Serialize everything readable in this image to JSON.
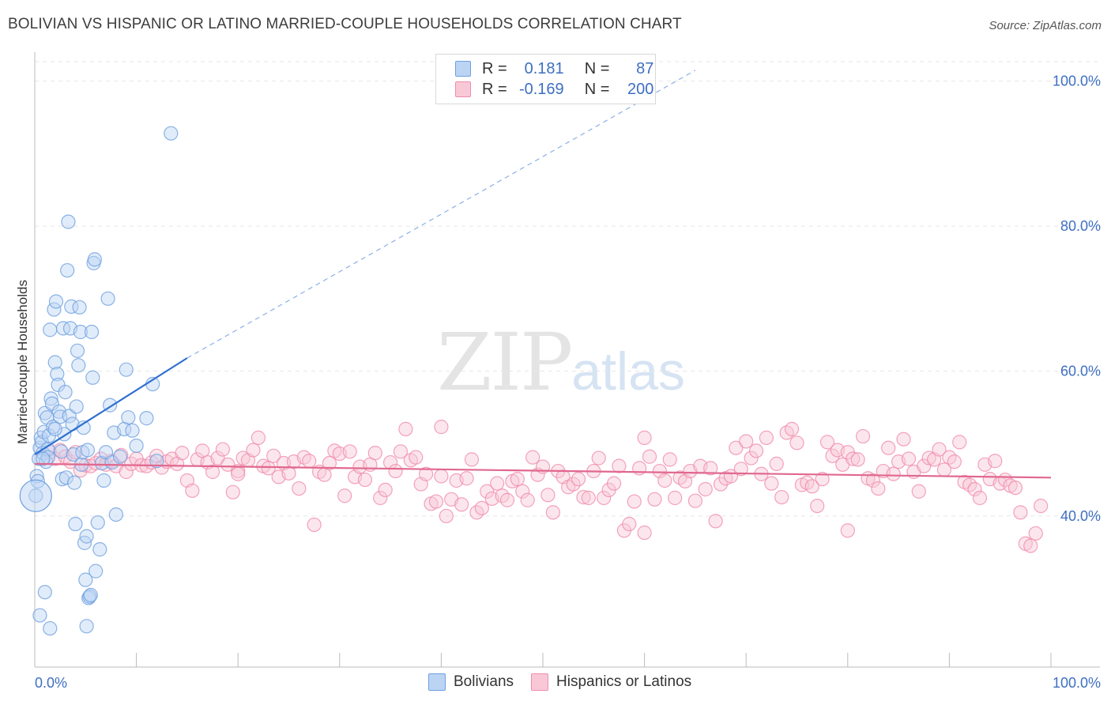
{
  "title": "BOLIVIAN VS HISPANIC OR LATINO MARRIED-COUPLE HOUSEHOLDS CORRELATION CHART",
  "source": "Source: ZipAtlas.com",
  "watermark": {
    "zip": "ZIP",
    "atlas": "atlas"
  },
  "legend": {
    "rows": [
      {
        "r_label": "R =",
        "r_value": "0.181",
        "n_label": "N =",
        "n_value": "87",
        "color": "#6ea0e0"
      },
      {
        "r_label": "R =",
        "r_value": "-0.169",
        "n_label": "N =",
        "n_value": "200",
        "color": "#f08cab"
      }
    ]
  },
  "bottom_legend": [
    {
      "label": "Bolivians",
      "color": "#6ea0e0"
    },
    {
      "label": "Hispanics or Latinos",
      "color": "#f08cab"
    }
  ],
  "chart_data": {
    "type": "scatter",
    "ylabel": "Married-couple Households",
    "xlim": [
      0,
      100
    ],
    "ylim": [
      22,
      104
    ],
    "x_tick_labels": [
      "0.0%",
      "100.0%"
    ],
    "y_ticks": [
      40,
      60,
      80,
      100
    ],
    "y_tick_labels": [
      "40.0%",
      "60.0%",
      "80.0%",
      "100.0%"
    ],
    "grid": true,
    "series": [
      {
        "name": "Bolivians",
        "color": "#6ea0e0",
        "trend": {
          "x0": 0,
          "y0": 48.5,
          "x1": 15,
          "y1": 61.8,
          "dash_to_x": 65,
          "dash_to_y": 101.5,
          "color": "#2f6fd0"
        },
        "points": [
          [
            0.1,
            42.8
          ],
          [
            0.2,
            45.5
          ],
          [
            0.3,
            44.8
          ],
          [
            0.4,
            47.9
          ],
          [
            0.5,
            49.4
          ],
          [
            0.6,
            50.8
          ],
          [
            0.7,
            50.2
          ],
          [
            0.8,
            48.7
          ],
          [
            0.9,
            51.6
          ],
          [
            1.0,
            54.2
          ],
          [
            1.1,
            47.5
          ],
          [
            1.2,
            53.6
          ],
          [
            1.3,
            49.2
          ],
          [
            1.4,
            51.1
          ],
          [
            1.5,
            65.7
          ],
          [
            1.6,
            56.2
          ],
          [
            1.7,
            55.5
          ],
          [
            1.8,
            52.3
          ],
          [
            1.9,
            68.5
          ],
          [
            2.0,
            61.2
          ],
          [
            2.1,
            69.6
          ],
          [
            2.2,
            59.6
          ],
          [
            2.3,
            58.1
          ],
          [
            2.4,
            54.4
          ],
          [
            2.5,
            53.7
          ],
          [
            2.6,
            48.9
          ],
          [
            2.7,
            45.1
          ],
          [
            2.8,
            65.9
          ],
          [
            2.9,
            51.3
          ],
          [
            3.0,
            57.1
          ],
          [
            3.1,
            45.3
          ],
          [
            3.2,
            73.9
          ],
          [
            3.3,
            80.6
          ],
          [
            3.4,
            53.8
          ],
          [
            3.5,
            65.9
          ],
          [
            3.6,
            68.9
          ],
          [
            3.7,
            52.7
          ],
          [
            3.8,
            48.5
          ],
          [
            3.9,
            44.6
          ],
          [
            4.0,
            38.9
          ],
          [
            4.1,
            55.1
          ],
          [
            4.2,
            62.8
          ],
          [
            4.3,
            60.8
          ],
          [
            4.4,
            68.8
          ],
          [
            4.5,
            65.4
          ],
          [
            4.6,
            47.1
          ],
          [
            4.7,
            48.8
          ],
          [
            4.8,
            52.2
          ],
          [
            4.9,
            36.3
          ],
          [
            5.0,
            31.2
          ],
          [
            5.1,
            37.2
          ],
          [
            5.2,
            49.1
          ],
          [
            5.3,
            28.7
          ],
          [
            5.4,
            28.9
          ],
          [
            5.5,
            29.1
          ],
          [
            5.6,
            65.4
          ],
          [
            5.7,
            59.1
          ],
          [
            5.8,
            74.9
          ],
          [
            5.9,
            75.4
          ],
          [
            6.0,
            32.4
          ],
          [
            6.2,
            39.1
          ],
          [
            6.4,
            35.4
          ],
          [
            6.6,
            47.3
          ],
          [
            6.8,
            44.9
          ],
          [
            7.0,
            48.8
          ],
          [
            7.2,
            70.0
          ],
          [
            7.4,
            55.3
          ],
          [
            7.6,
            47.4
          ],
          [
            7.8,
            51.5
          ],
          [
            8.0,
            40.2
          ],
          [
            8.4,
            48.2
          ],
          [
            8.8,
            52.0
          ],
          [
            9.0,
            60.2
          ],
          [
            9.2,
            53.6
          ],
          [
            9.6,
            51.8
          ],
          [
            10.0,
            49.7
          ],
          [
            11.0,
            53.5
          ],
          [
            11.6,
            58.2
          ],
          [
            12.0,
            47.6
          ],
          [
            13.4,
            92.8
          ],
          [
            0.5,
            26.3
          ],
          [
            1.0,
            29.5
          ],
          [
            1.5,
            24.5
          ],
          [
            5.1,
            24.8
          ],
          [
            2.0,
            52.0
          ],
          [
            1.3,
            48.1
          ],
          [
            0.8,
            47.9
          ]
        ]
      },
      {
        "name": "Hispanics or Latinos",
        "color": "#f08cab",
        "trend": {
          "x0": 0,
          "y0": 47.2,
          "x1": 100,
          "y1": 45.3,
          "color": "#e0688f"
        },
        "points": [
          [
            1.5,
            48.8
          ],
          [
            2.0,
            47.9
          ],
          [
            2.5,
            49.1
          ],
          [
            3.0,
            48.2
          ],
          [
            3.5,
            47.5
          ],
          [
            4.0,
            48.8
          ],
          [
            4.5,
            46.3
          ],
          [
            5.0,
            47.0
          ],
          [
            5.5,
            46.9
          ],
          [
            6.0,
            47.3
          ],
          [
            6.5,
            47.9
          ],
          [
            7.0,
            47.1
          ],
          [
            7.5,
            47.6
          ],
          [
            8.0,
            46.9
          ],
          [
            8.5,
            48.4
          ],
          [
            9.0,
            46.1
          ],
          [
            9.5,
            47.2
          ],
          [
            10.0,
            47.9
          ],
          [
            10.5,
            47.0
          ],
          [
            11.0,
            46.9
          ],
          [
            11.5,
            47.4
          ],
          [
            12.0,
            48.3
          ],
          [
            12.5,
            46.7
          ],
          [
            13.0,
            47.5
          ],
          [
            13.5,
            47.9
          ],
          [
            14.0,
            47.2
          ],
          [
            14.5,
            48.7
          ],
          [
            15.0,
            44.9
          ],
          [
            15.5,
            43.5
          ],
          [
            16.0,
            47.8
          ],
          [
            16.5,
            49.0
          ],
          [
            17.0,
            47.4
          ],
          [
            17.5,
            46.1
          ],
          [
            18.0,
            48.0
          ],
          [
            18.5,
            49.2
          ],
          [
            19.0,
            47.1
          ],
          [
            19.5,
            43.3
          ],
          [
            20.0,
            46.2
          ],
          [
            20.5,
            48.0
          ],
          [
            21.0,
            47.7
          ],
          [
            21.5,
            49.1
          ],
          [
            22.0,
            50.8
          ],
          [
            22.5,
            46.9
          ],
          [
            23.0,
            46.6
          ],
          [
            23.5,
            48.3
          ],
          [
            24.0,
            45.4
          ],
          [
            24.5,
            47.3
          ],
          [
            25.0,
            45.9
          ],
          [
            25.5,
            47.5
          ],
          [
            26.0,
            43.8
          ],
          [
            26.5,
            48.1
          ],
          [
            27.0,
            47.6
          ],
          [
            27.5,
            38.8
          ],
          [
            28.0,
            46.1
          ],
          [
            28.5,
            45.7
          ],
          [
            29.0,
            47.3
          ],
          [
            29.5,
            49.0
          ],
          [
            30.0,
            48.6
          ],
          [
            30.5,
            42.8
          ],
          [
            31.0,
            48.9
          ],
          [
            31.5,
            45.4
          ],
          [
            32.0,
            46.8
          ],
          [
            32.5,
            45.0
          ],
          [
            33.0,
            47.1
          ],
          [
            33.5,
            48.7
          ],
          [
            34.0,
            42.5
          ],
          [
            34.5,
            43.6
          ],
          [
            35.0,
            47.4
          ],
          [
            35.5,
            46.2
          ],
          [
            36.0,
            48.9
          ],
          [
            36.5,
            52.0
          ],
          [
            37.0,
            47.7
          ],
          [
            37.5,
            48.1
          ],
          [
            38.0,
            44.4
          ],
          [
            38.5,
            45.8
          ],
          [
            39.0,
            41.7
          ],
          [
            39.5,
            42.0
          ],
          [
            40.0,
            45.5
          ],
          [
            40.5,
            40.0
          ],
          [
            41.0,
            42.3
          ],
          [
            41.5,
            44.9
          ],
          [
            42.0,
            41.6
          ],
          [
            42.5,
            45.2
          ],
          [
            43.0,
            47.8
          ],
          [
            43.5,
            40.5
          ],
          [
            44.0,
            41.1
          ],
          [
            44.5,
            43.4
          ],
          [
            45.0,
            42.4
          ],
          [
            45.5,
            44.5
          ],
          [
            46.0,
            42.8
          ],
          [
            46.5,
            42.2
          ],
          [
            47.0,
            44.8
          ],
          [
            47.5,
            45.1
          ],
          [
            48.0,
            43.4
          ],
          [
            48.5,
            42.2
          ],
          [
            49.0,
            48.1
          ],
          [
            49.5,
            45.7
          ],
          [
            50.0,
            46.8
          ],
          [
            50.5,
            42.9
          ],
          [
            51.0,
            40.5
          ],
          [
            51.5,
            46.2
          ],
          [
            52.0,
            45.4
          ],
          [
            52.5,
            44.0
          ],
          [
            53.0,
            44.4
          ],
          [
            53.5,
            45.1
          ],
          [
            54.0,
            42.6
          ],
          [
            54.5,
            42.5
          ],
          [
            55.0,
            46.2
          ],
          [
            55.5,
            48.0
          ],
          [
            56.0,
            42.5
          ],
          [
            56.5,
            43.6
          ],
          [
            57.0,
            44.5
          ],
          [
            57.5,
            46.9
          ],
          [
            58.0,
            38.0
          ],
          [
            58.5,
            38.9
          ],
          [
            59.0,
            42.0
          ],
          [
            59.5,
            46.6
          ],
          [
            60.0,
            37.7
          ],
          [
            60.5,
            48.2
          ],
          [
            61.0,
            42.3
          ],
          [
            61.5,
            46.2
          ],
          [
            62.0,
            44.9
          ],
          [
            62.5,
            47.8
          ],
          [
            63.0,
            42.5
          ],
          [
            63.5,
            45.3
          ],
          [
            64.0,
            44.8
          ],
          [
            64.5,
            46.2
          ],
          [
            65.0,
            42.1
          ],
          [
            65.5,
            46.9
          ],
          [
            66.0,
            43.7
          ],
          [
            66.5,
            46.6
          ],
          [
            67.0,
            39.3
          ],
          [
            67.5,
            44.4
          ],
          [
            68.0,
            45.2
          ],
          [
            68.5,
            45.5
          ],
          [
            69.0,
            49.4
          ],
          [
            69.5,
            46.5
          ],
          [
            70.0,
            50.3
          ],
          [
            70.5,
            48.0
          ],
          [
            71.0,
            49.0
          ],
          [
            71.5,
            45.8
          ],
          [
            72.0,
            50.8
          ],
          [
            72.5,
            44.5
          ],
          [
            73.0,
            47.2
          ],
          [
            73.5,
            42.6
          ],
          [
            74.0,
            51.5
          ],
          [
            74.5,
            52.0
          ],
          [
            75.0,
            50.1
          ],
          [
            75.5,
            44.3
          ],
          [
            76.0,
            44.6
          ],
          [
            76.5,
            44.1
          ],
          [
            77.0,
            41.4
          ],
          [
            77.5,
            45.1
          ],
          [
            78.0,
            50.2
          ],
          [
            78.5,
            48.3
          ],
          [
            79.0,
            49.1
          ],
          [
            79.5,
            47.1
          ],
          [
            80.0,
            48.8
          ],
          [
            80.5,
            47.9
          ],
          [
            81.0,
            47.8
          ],
          [
            81.5,
            51.0
          ],
          [
            82.0,
            45.2
          ],
          [
            82.5,
            44.9
          ],
          [
            83.0,
            43.8
          ],
          [
            83.5,
            46.2
          ],
          [
            84.0,
            49.4
          ],
          [
            84.5,
            45.8
          ],
          [
            85.0,
            47.5
          ],
          [
            85.5,
            50.6
          ],
          [
            86.0,
            47.9
          ],
          [
            86.5,
            46.1
          ],
          [
            87.0,
            43.4
          ],
          [
            87.5,
            46.9
          ],
          [
            88.0,
            48.0
          ],
          [
            88.5,
            47.8
          ],
          [
            89.0,
            49.2
          ],
          [
            89.5,
            46.4
          ],
          [
            90.0,
            48.1
          ],
          [
            90.5,
            47.5
          ],
          [
            91.0,
            50.2
          ],
          [
            91.5,
            44.7
          ],
          [
            92.0,
            44.3
          ],
          [
            92.5,
            43.7
          ],
          [
            93.0,
            42.5
          ],
          [
            93.5,
            47.1
          ],
          [
            94.0,
            45.1
          ],
          [
            94.5,
            47.6
          ],
          [
            95.0,
            44.5
          ],
          [
            95.5,
            45.0
          ],
          [
            96.0,
            44.2
          ],
          [
            96.5,
            43.9
          ],
          [
            97.0,
            40.5
          ],
          [
            97.5,
            36.2
          ],
          [
            98.0,
            35.9
          ],
          [
            98.5,
            37.6
          ],
          [
            99.0,
            41.4
          ],
          [
            20.0,
            45.8
          ],
          [
            40.0,
            52.3
          ],
          [
            60.0,
            50.8
          ],
          [
            80.0,
            38.0
          ]
        ]
      }
    ]
  }
}
